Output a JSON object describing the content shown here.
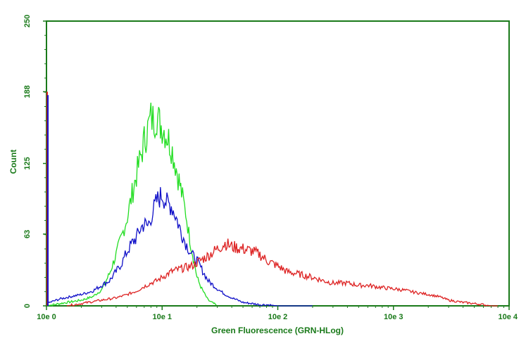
{
  "chart_data": {
    "type": "line",
    "xlabel": "Green Fluorescence (GRN-HLog)",
    "ylabel": "Count",
    "x_scale": "log",
    "xlim": [
      1,
      10000
    ],
    "ylim": [
      0,
      250
    ],
    "x_ticks": [
      {
        "value": 1,
        "label": "10e 0"
      },
      {
        "value": 10,
        "label": "10e 1"
      },
      {
        "value": 100,
        "label": "10e 2"
      },
      {
        "value": 1000,
        "label": "10e 3"
      },
      {
        "value": 10000,
        "label": "10e 4"
      }
    ],
    "y_ticks": [
      {
        "value": 0,
        "label": "0"
      },
      {
        "value": 63,
        "label": "63"
      },
      {
        "value": 125,
        "label": "125"
      },
      {
        "value": 188,
        "label": "188"
      },
      {
        "value": 250,
        "label": "250"
      }
    ],
    "grid": false,
    "legend": "none",
    "frame_color": "#1a7a1a",
    "label_color": "#1a7a1a",
    "series": [
      {
        "color": "#22dd22",
        "x": [
          1,
          1.5,
          2,
          2.5,
          3,
          3.5,
          4,
          4.5,
          5,
          5.5,
          6,
          6.5,
          7,
          7.5,
          8,
          8.5,
          9,
          9.5,
          10,
          11,
          12,
          13,
          14,
          15,
          16,
          17,
          18,
          19,
          20,
          22,
          25,
          30,
          1
        ],
        "y": [
          0,
          3,
          5,
          8,
          14,
          28,
          45,
          62,
          78,
          98,
          115,
          130,
          145,
          155,
          165,
          163,
          168,
          160,
          158,
          150,
          140,
          125,
          110,
          95,
          82,
          64,
          50,
          38,
          25,
          15,
          5,
          0,
          0
        ]
      },
      {
        "color": "#1010c8",
        "x": [
          1,
          1.3,
          1.6,
          2,
          2.5,
          3,
          3.5,
          4,
          4.5,
          5,
          5.5,
          6,
          6.5,
          7,
          7.5,
          8,
          8.5,
          9,
          9.5,
          10,
          11,
          12,
          13,
          14,
          15,
          16,
          17,
          18,
          20,
          22,
          25,
          30,
          35,
          40,
          45,
          50,
          60,
          70,
          80,
          100,
          120,
          150,
          200
        ],
        "y": [
          2,
          6,
          8,
          10,
          13,
          18,
          22,
          30,
          38,
          48,
          55,
          60,
          68,
          72,
          70,
          78,
          85,
          92,
          95,
          98,
          90,
          88,
          80,
          70,
          62,
          55,
          50,
          45,
          40,
          32,
          22,
          15,
          10,
          7,
          5,
          3,
          2,
          1,
          1,
          0,
          0,
          0,
          0
        ]
      },
      {
        "color": "#dd2222",
        "x": [
          1.5,
          2,
          3,
          4,
          5,
          6,
          7,
          8,
          9,
          10,
          12,
          15,
          18,
          20,
          25,
          30,
          35,
          40,
          50,
          60,
          70,
          80,
          100,
          120,
          150,
          200,
          250,
          300,
          400,
          500,
          600,
          800,
          1000,
          1200,
          1500,
          2000,
          2500,
          3000,
          4000,
          5000,
          6000,
          7000,
          8000
        ],
        "y": [
          0,
          2,
          5,
          7,
          10,
          13,
          17,
          20,
          22,
          25,
          30,
          33,
          35,
          38,
          44,
          50,
          55,
          52,
          50,
          48,
          45,
          40,
          35,
          30,
          28,
          25,
          22,
          20,
          20,
          18,
          18,
          16,
          15,
          14,
          12,
          10,
          8,
          5,
          3,
          2,
          1,
          0,
          0
        ]
      }
    ]
  }
}
